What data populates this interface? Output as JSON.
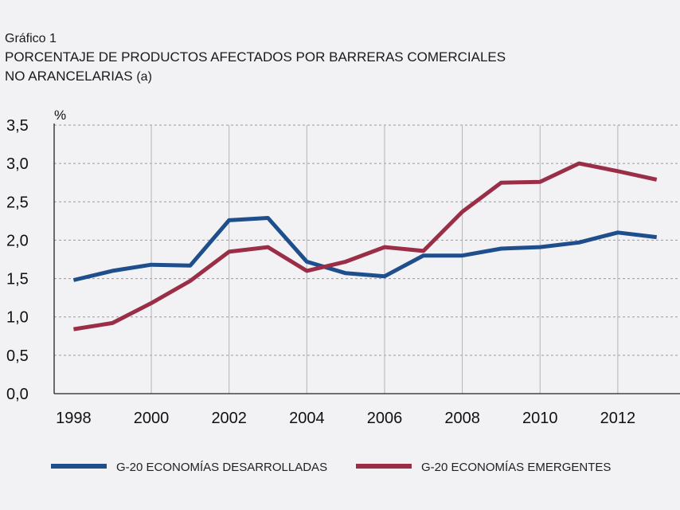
{
  "header": {
    "label": "Gráfico 1",
    "title_line1": "PORCENTAJE DE PRODUCTOS AFECTADOS POR BARRERAS COMERCIALES",
    "title_line2": "NO ARANCELARIAS",
    "title_suffix": "(a)"
  },
  "chart_data": {
    "type": "line",
    "title": "PORCENTAJE DE PRODUCTOS AFECTADOS POR BARRERAS COMERCIALES NO ARANCELARIAS (a)",
    "xlabel": "",
    "ylabel": "%",
    "xlim": [
      1997.5,
      2013.6
    ],
    "ylim": [
      0,
      3.5
    ],
    "yticks": [
      "0,0",
      "0,5",
      "1,0",
      "1,5",
      "2,0",
      "2,5",
      "3,0",
      "3,5"
    ],
    "ytick_values": [
      0,
      0.5,
      1.0,
      1.5,
      2.0,
      2.5,
      3.0,
      3.5
    ],
    "xticks": [
      "1998",
      "2000",
      "2002",
      "2004",
      "2006",
      "2008",
      "2010",
      "2012"
    ],
    "xtick_values": [
      1998,
      2000,
      2002,
      2004,
      2006,
      2008,
      2010,
      2012
    ],
    "grid": true,
    "legend_position": "bottom",
    "series": [
      {
        "name": "G-20 ECONOMÍAS DESARROLLADAS",
        "color": "#1f4e8c",
        "x": [
          1998,
          1999,
          2000,
          2001,
          2002,
          2003,
          2004,
          2005,
          2006,
          2007,
          2008,
          2009,
          2010,
          2011,
          2012,
          2013
        ],
        "values": [
          1.48,
          1.6,
          1.68,
          1.67,
          2.26,
          2.29,
          1.72,
          1.57,
          1.53,
          1.8,
          1.8,
          1.89,
          1.91,
          1.97,
          2.1,
          2.04
        ]
      },
      {
        "name": "G-20 ECONOMÍAS EMERGENTES",
        "color": "#9a2e47",
        "x": [
          1998,
          1999,
          2000,
          2001,
          2002,
          2003,
          2004,
          2005,
          2006,
          2007,
          2008,
          2009,
          2010,
          2011,
          2012,
          2013
        ],
        "values": [
          0.84,
          0.92,
          1.18,
          1.47,
          1.85,
          1.91,
          1.6,
          1.72,
          1.91,
          1.86,
          2.37,
          2.75,
          2.76,
          3.0,
          2.9,
          2.79
        ]
      }
    ]
  }
}
